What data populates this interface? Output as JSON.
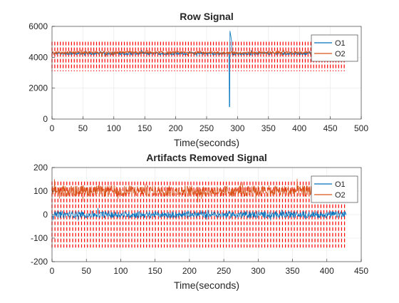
{
  "figure": {
    "background": "#ffffff"
  },
  "chart_data": [
    {
      "type": "line",
      "title": "Row Signal",
      "xlabel": "Time(seconds)",
      "ylabel": "",
      "xlim": [
        0,
        500
      ],
      "ylim": [
        0,
        6000
      ],
      "xticks": [
        0,
        50,
        100,
        150,
        200,
        250,
        300,
        350,
        400,
        450,
        500
      ],
      "yticks": [
        0,
        2000,
        4000,
        6000
      ],
      "xtick_labels": [
        "0",
        "50",
        "100",
        "150",
        "200",
        "250",
        "300",
        "350",
        "400",
        "450",
        "500"
      ],
      "ytick_labels": [
        "0",
        "2000",
        "4000",
        "6000"
      ],
      "grid": true,
      "legend_position": "top-right",
      "series": [
        {
          "name": "O1",
          "color": "#0072BD",
          "baseline": 4250,
          "x_range": [
            0,
            475
          ],
          "spike": {
            "x": 287,
            "min": 800,
            "max": 5900
          }
        },
        {
          "name": "O2",
          "color": "#D95319",
          "baseline": 4300,
          "x_range": [
            0,
            475
          ]
        }
      ],
      "markers": {
        "color": "#FF0000",
        "style": "dashed vertical lines",
        "x_start": 0,
        "x_end": 475,
        "period": 4.5,
        "low": 3100,
        "high": 5000
      }
    },
    {
      "type": "line",
      "title": "Artifacts Removed Signal",
      "xlabel": "Time(seconds)",
      "ylabel": "",
      "xlim": [
        0,
        450
      ],
      "ylim": [
        -200,
        200
      ],
      "xticks": [
        0,
        50,
        100,
        150,
        200,
        250,
        300,
        350,
        400,
        450
      ],
      "yticks": [
        -200,
        -100,
        0,
        100,
        200
      ],
      "xtick_labels": [
        "0",
        "50",
        "100",
        "150",
        "200",
        "250",
        "300",
        "350",
        "400",
        "450"
      ],
      "ytick_labels": [
        "-200",
        "-100",
        "0",
        "100",
        "200"
      ],
      "grid": true,
      "legend_position": "top-right",
      "series": [
        {
          "name": "O1",
          "color": "#0072BD",
          "baseline": 0,
          "x_range": [
            0,
            428
          ]
        },
        {
          "name": "O2",
          "color": "#D95319",
          "baseline": 100,
          "x_range": [
            0,
            428
          ]
        }
      ],
      "markers": {
        "color": "#FF0000",
        "style": "dashed vertical lines",
        "x_start": 0,
        "x_end": 428,
        "period": 4.3,
        "low": -140,
        "high": 140
      }
    }
  ]
}
